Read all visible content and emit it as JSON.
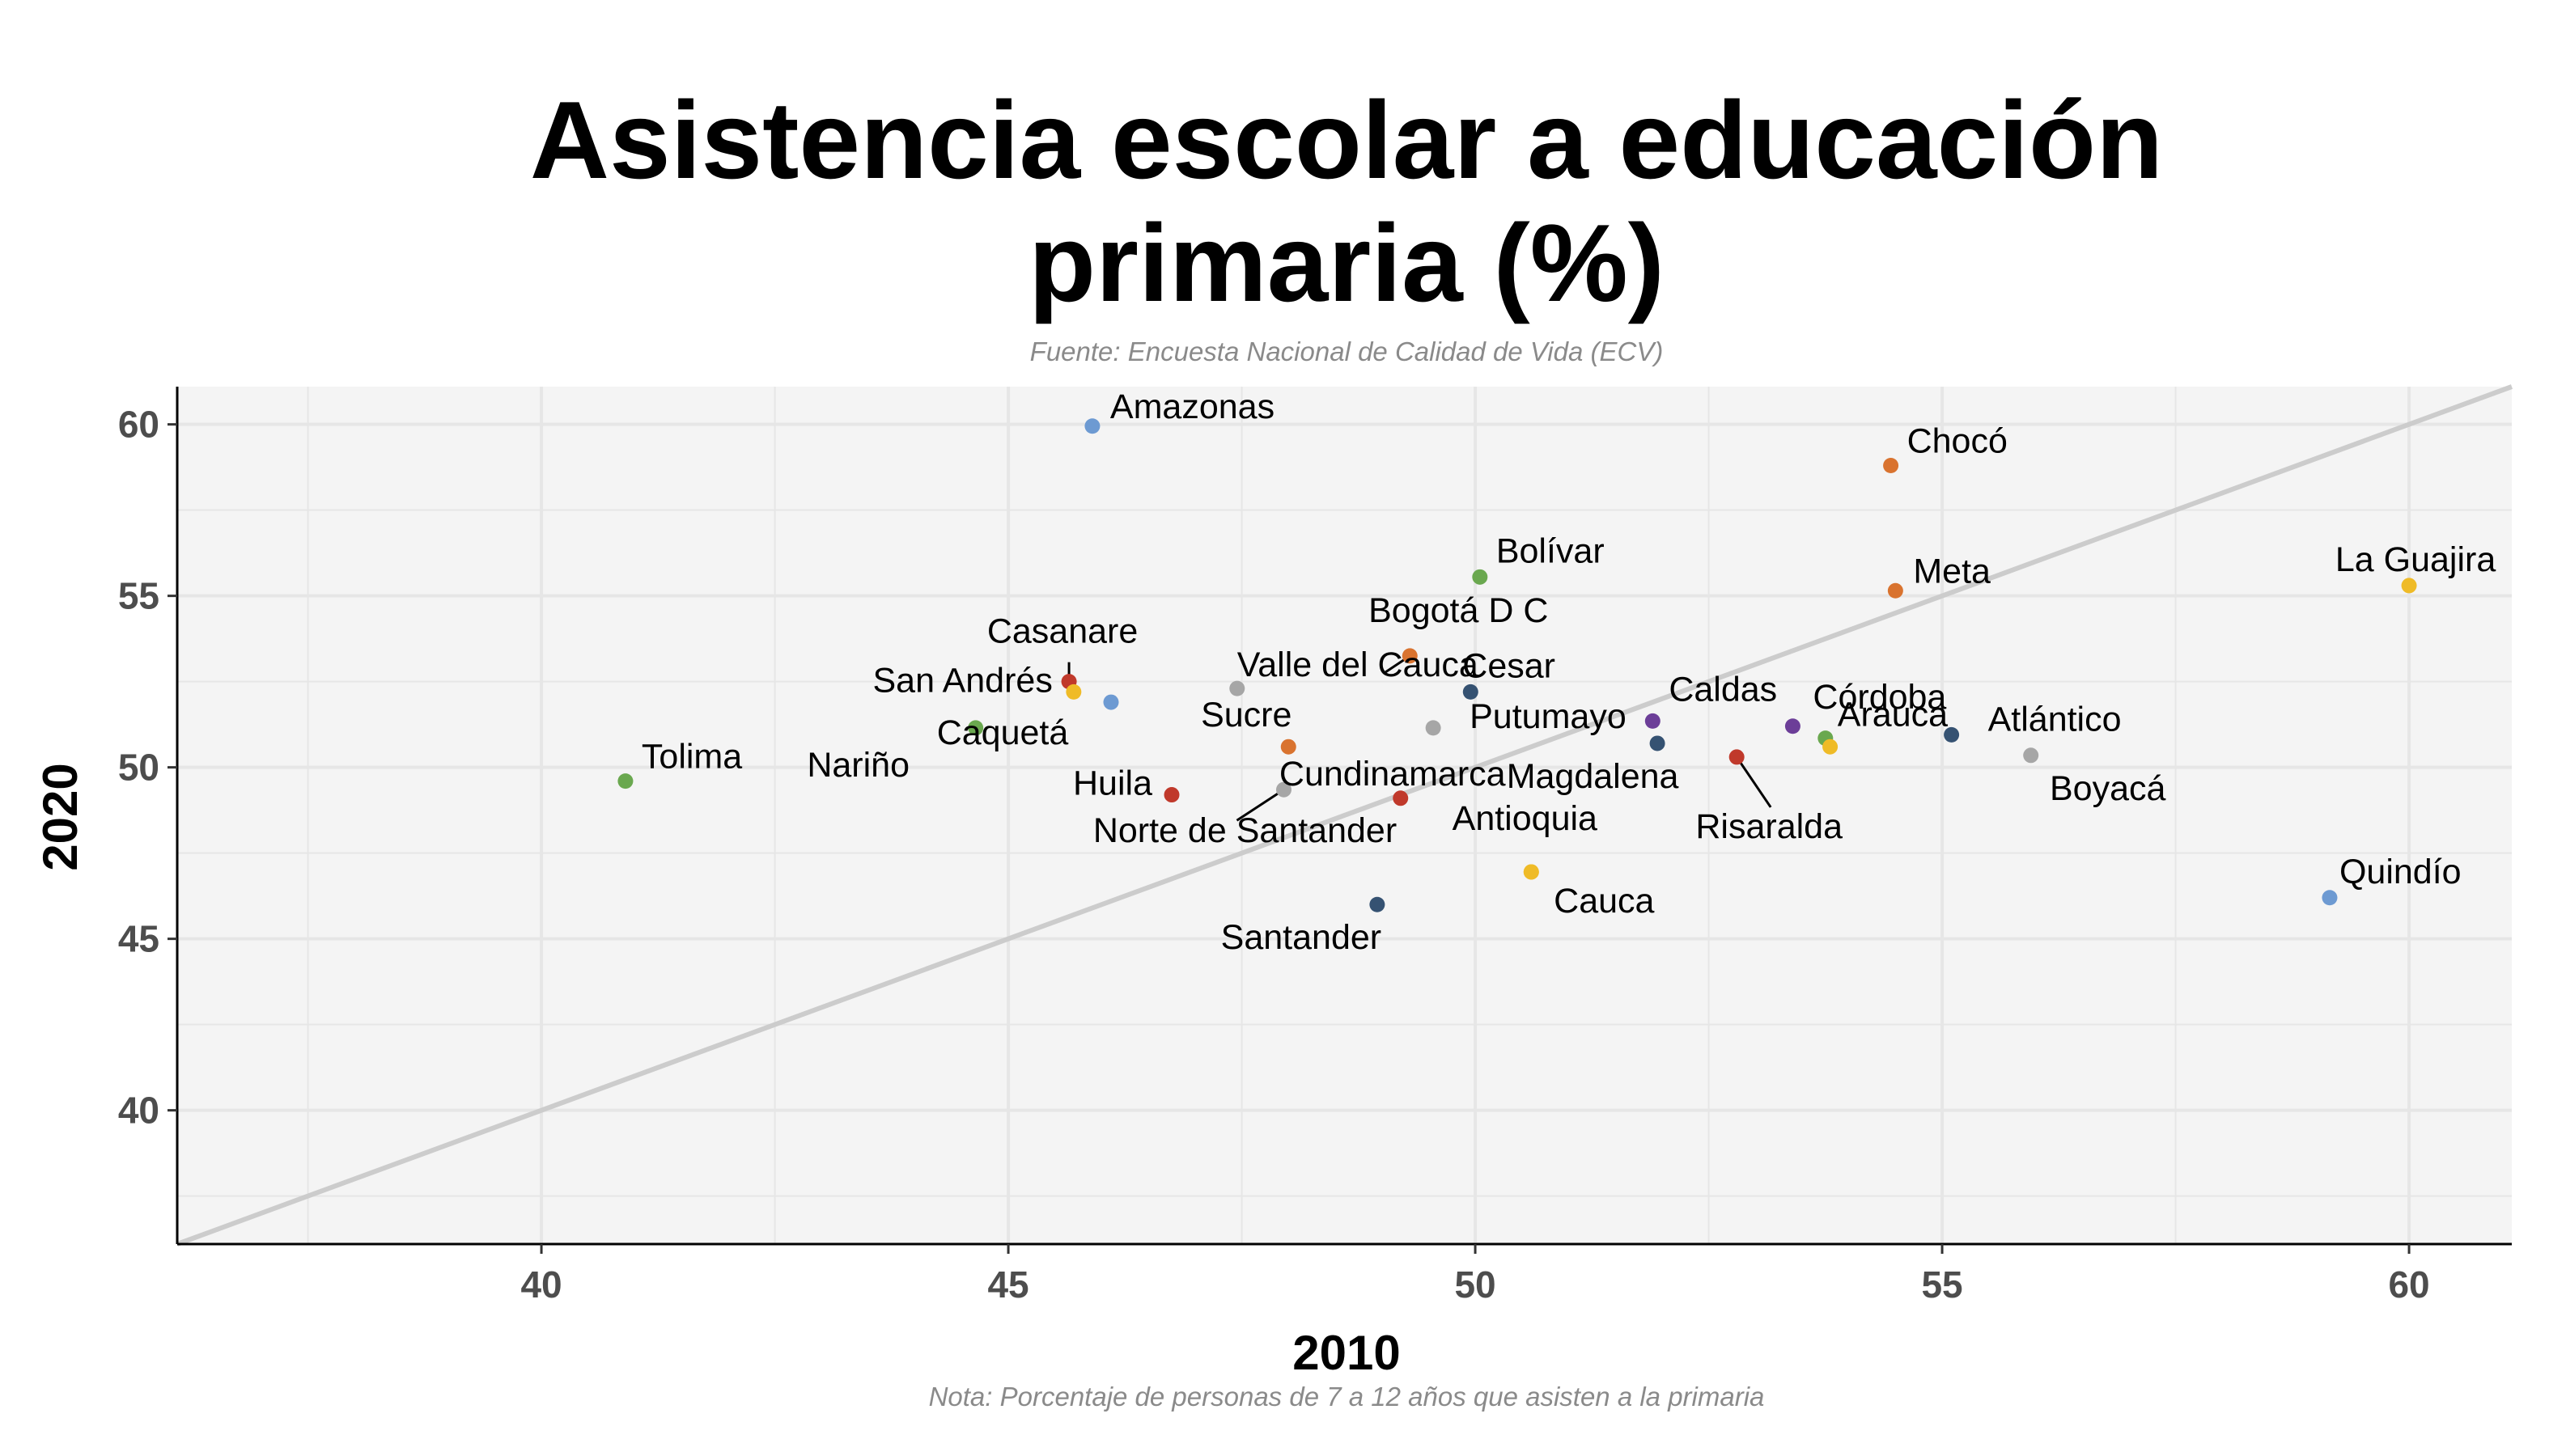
{
  "chart_data": {
    "type": "scatter",
    "title": [
      "Asistencia escolar a educación",
      "primaria (%)"
    ],
    "subtitle": "Fuente: Encuesta Nacional de Calidad de Vida (ECV)",
    "caption": "Nota: Porcentaje de personas de 7 a 12 años que asisten a la primaria",
    "xlabel": "2010",
    "ylabel": "2020",
    "xlim": [
      36.1,
      61.1
    ],
    "ylim": [
      36.1,
      61.1
    ],
    "xticks": [
      40,
      45,
      50,
      55,
      60
    ],
    "yticks": [
      40,
      45,
      50,
      55,
      60
    ],
    "grid": true,
    "reference_line": "y = x",
    "colors": {
      "panel": "#f4f4f4",
      "grid": "#e6e6e6",
      "reference_line": "#cccccc",
      "red": "#c0392b",
      "orange": "#d9732f",
      "yellow": "#efbb27",
      "green": "#6aa84f",
      "lightblue": "#6d9ad2",
      "navy": "#355272",
      "purple": "#6c3e98",
      "gray": "#a6a6a6"
    },
    "points": [
      {
        "name": "Amazonas",
        "x": 45.9,
        "y": 59.95,
        "color": "lightblue"
      },
      {
        "name": "Chocó",
        "x": 54.45,
        "y": 58.8,
        "color": "orange"
      },
      {
        "name": "Bolívar",
        "x": 50.05,
        "y": 55.55,
        "color": "green"
      },
      {
        "name": "Meta",
        "x": 54.5,
        "y": 55.15,
        "color": "orange"
      },
      {
        "name": "La Guajira",
        "x": 60.0,
        "y": 55.3,
        "color": "yellow"
      },
      {
        "name": "Bogotá D C",
        "x": 49.3,
        "y": 53.25,
        "color": "orange"
      },
      {
        "name": "Casanare",
        "x": 45.65,
        "y": 52.5,
        "color": "red"
      },
      {
        "name": "San Andrés",
        "x": 45.7,
        "y": 52.2,
        "color": "yellow"
      },
      {
        "name": "Caquetá",
        "x": 46.1,
        "y": 51.9,
        "color": "lightblue"
      },
      {
        "name": "Valle del Cauca",
        "x": 47.45,
        "y": 52.3,
        "color": "gray"
      },
      {
        "name": "Cesar",
        "x": 49.95,
        "y": 52.2,
        "color": "navy"
      },
      {
        "name": "Nariño",
        "x": 44.65,
        "y": 51.15,
        "color": "green"
      },
      {
        "name": "Putumayo",
        "x": 49.55,
        "y": 51.15,
        "color": "gray"
      },
      {
        "name": "Caldas",
        "x": 51.9,
        "y": 51.35,
        "color": "purple"
      },
      {
        "name": "Córdoba",
        "x": 53.4,
        "y": 51.2,
        "color": "purple"
      },
      {
        "name": "Atlántico",
        "x": 55.1,
        "y": 50.95,
        "color": "navy"
      },
      {
        "name": "Arauca",
        "x": 53.75,
        "y": 50.85,
        "color": "green"
      },
      {
        "name": "Arauca",
        "x": 53.8,
        "y": 50.6,
        "color": "yellow"
      },
      {
        "name": "Magdalena",
        "x": 51.95,
        "y": 50.7,
        "color": "navy"
      },
      {
        "name": "Boyacá",
        "x": 55.95,
        "y": 50.35,
        "color": "gray"
      },
      {
        "name": "Tolima",
        "x": 40.9,
        "y": 49.6,
        "color": "green"
      },
      {
        "name": "Sucre",
        "x": 48.0,
        "y": 50.6,
        "color": "orange"
      },
      {
        "name": "Cundinamarca",
        "x": 49.2,
        "y": 49.1,
        "color": "red"
      },
      {
        "name": "Huila",
        "x": 46.75,
        "y": 49.2,
        "color": "red"
      },
      {
        "name": "Norte de Santander",
        "x": 47.95,
        "y": 49.35,
        "color": "gray"
      },
      {
        "name": "Risaralda",
        "x": 52.8,
        "y": 50.3,
        "color": "red"
      },
      {
        "name": "Antioquia",
        "x": 50.6,
        "y": 46.95,
        "color": "yellow"
      },
      {
        "name": "Cauca",
        "x": 50.6,
        "y": 46.95,
        "color": "yellow"
      },
      {
        "name": "Santander",
        "x": 48.95,
        "y": 46.0,
        "color": "navy"
      },
      {
        "name": "Quindío",
        "x": 59.15,
        "y": 46.2,
        "color": "lightblue"
      }
    ]
  }
}
